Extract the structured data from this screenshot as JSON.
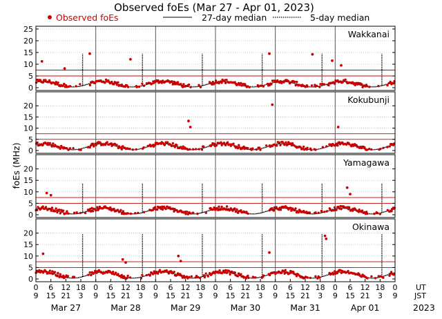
{
  "chart_data": {
    "type": "scatter",
    "title": "Observed foEs (Mar 27 - Apr 01, 2023)",
    "legend": {
      "observed": "Observed foEs",
      "median27": "27-day median",
      "median5": "5-day median",
      "placement": "top"
    },
    "ylabel": "foEs (MHz)",
    "colors": {
      "observed": "#cc0000",
      "median": "#000000",
      "threshold": "#cc0000",
      "day_divider": "#555555",
      "grid": "#999999"
    },
    "x_unit_labels": [
      "UT",
      "JST"
    ],
    "year_label": "2023",
    "days": [
      "Mar 27",
      "Mar 28",
      "Mar 29",
      "Mar 30",
      "Mar 31",
      "Apr 01"
    ],
    "ut_ticks": [
      "0",
      "6",
      "12",
      "18"
    ],
    "jst_ticks": [
      "9",
      "15",
      "21",
      "3"
    ],
    "final_ut_tick": "0",
    "final_jst_tick": "9",
    "panels": [
      {
        "station": "Wakkanai",
        "ylim": [
          0,
          25
        ],
        "yticks": [
          0,
          5,
          10,
          15,
          20,
          25
        ],
        "thresholds": [
          5,
          7.5
        ],
        "baseline": 2.6,
        "spike_height": 14.5,
        "outliers": [
          [
            0.1,
            11.2
          ],
          [
            0.48,
            8.2
          ],
          [
            0.9,
            14.5
          ],
          [
            1.58,
            12.1
          ],
          [
            3.9,
            14.5
          ],
          [
            4.62,
            14.2
          ],
          [
            4.95,
            11.5
          ],
          [
            5.1,
            9.5
          ]
        ]
      },
      {
        "station": "Kokubunji",
        "ylim": [
          0,
          25
        ],
        "yticks": [
          0,
          5,
          10,
          15,
          20
        ],
        "thresholds": [
          5,
          7.5
        ],
        "baseline": 3.0,
        "spike_height": 0,
        "outliers": [
          [
            2.55,
            13.2
          ],
          [
            2.58,
            10.5
          ],
          [
            3.95,
            20.5
          ],
          [
            5.05,
            10.5
          ]
        ]
      },
      {
        "station": "Yamagawa",
        "ylim": [
          0,
          25
        ],
        "yticks": [
          0,
          5,
          10,
          15,
          20
        ],
        "thresholds": [
          5,
          7.5
        ],
        "baseline": 2.8,
        "spike_height": 13.5,
        "outliers": [
          [
            0.18,
            9.5
          ],
          [
            0.25,
            8.5
          ],
          [
            5.2,
            11.8
          ],
          [
            5.25,
            9.0
          ]
        ]
      },
      {
        "station": "Okinawa",
        "ylim": [
          0,
          25
        ],
        "yticks": [
          0,
          5,
          10,
          15,
          20
        ],
        "thresholds": [
          5,
          7.5
        ],
        "baseline": 3.0,
        "spike_height": 19.5,
        "outliers": [
          [
            0.12,
            11.0
          ],
          [
            1.45,
            8.5
          ],
          [
            1.5,
            7.2
          ],
          [
            2.38,
            10.0
          ],
          [
            2.42,
            7.8
          ],
          [
            3.9,
            11.5
          ],
          [
            4.83,
            18.8
          ],
          [
            4.85,
            17.5
          ]
        ]
      }
    ],
    "note": "x values in days since Mar 27 00 UT; y values in MHz. Dense diurnal foEs data approximated."
  }
}
